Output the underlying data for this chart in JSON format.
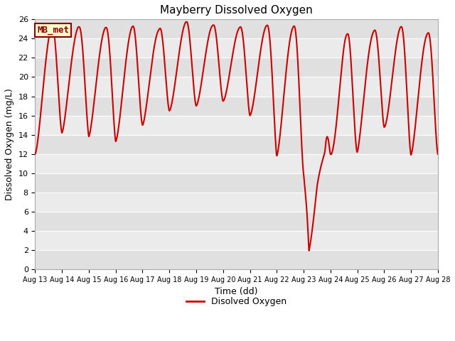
{
  "title": "Mayberry Dissolved Oxygen",
  "xlabel": "Time (dd)",
  "ylabel": "Dissolved Oxygen (mg/L)",
  "ylim": [
    0,
    26
  ],
  "legend_label": "Disolved Oxygen",
  "mb_met_label": "MB_met",
  "line_color": "#cc0000",
  "bg_color": "#ffffff",
  "plot_bg_even": "#e0e0e0",
  "plot_bg_odd": "#ebebeb",
  "mb_met_bg": "#ffffcc",
  "mb_met_border": "#8b0000",
  "x_tick_labels": [
    "Aug 13",
    "Aug 14",
    "Aug 15",
    "Aug 16",
    "Aug 17",
    "Aug 18",
    "Aug 19",
    "Aug 20",
    "Aug 21",
    "Aug 22",
    "Aug 23",
    "Aug 24",
    "Aug 25",
    "Aug 26",
    "Aug 27",
    "Aug 28"
  ],
  "x_tick_positions": [
    13,
    14,
    15,
    16,
    17,
    18,
    19,
    20,
    21,
    22,
    23,
    24,
    25,
    26,
    27,
    28
  ],
  "figsize": [
    6.4,
    4.8
  ],
  "dpi": 100,
  "line_width": 1.5,
  "title_fontsize": 11,
  "axis_label_fontsize": 9,
  "tick_fontsize": 8
}
